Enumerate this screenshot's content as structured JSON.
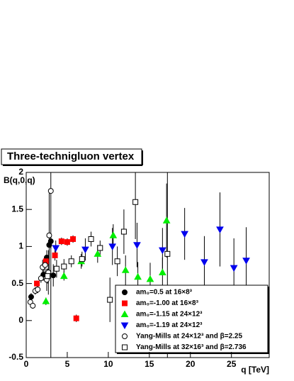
{
  "chart_data": {
    "type": "errorbar-scatter",
    "title": "Three-technigluon vertex",
    "y_label": "B(q,0,q)",
    "x_label": "q [TeV]",
    "xlim": [
      0,
      29.6
    ],
    "ylim": [
      -0.5,
      2
    ],
    "xticks": [
      0,
      5,
      10,
      15,
      20,
      25
    ],
    "yticks": [
      -0.5,
      0,
      0.5,
      1,
      1.5,
      2
    ],
    "series": [
      {
        "name": "am₀=0.5 at 16×8³",
        "color": "#000000",
        "marker": "circle-filled",
        "x": [
          0.6,
          2.1,
          2.5,
          2.8,
          3.0,
          3.3
        ],
        "values": [
          0.32,
          0.62,
          0.85,
          1.02,
          1.07,
          0.61
        ],
        "errors": [
          0.05,
          0.08,
          0.1,
          0.12,
          0.1,
          0.15
        ]
      },
      {
        "name": "am₀=-1.00 at 16×8³",
        "color": "#ff0000",
        "marker": "square-filled",
        "x": [
          1.3,
          2.4,
          3.5,
          4.3,
          5.0,
          5.7,
          6.1
        ],
        "values": [
          0.5,
          0.8,
          0.88,
          1.07,
          1.06,
          1.1,
          0.03
        ],
        "errors": [
          0.04,
          0.06,
          0.07,
          0.05,
          0.05,
          0.05,
          0.05
        ]
      },
      {
        "name": "am₀=-1.15 at 24×12³",
        "color": "#00ee00",
        "marker": "triangle-up",
        "x": [
          2.4,
          4.6,
          6.7,
          8.7,
          10.6,
          12.1,
          13.6,
          15.1,
          16.6,
          17.1
        ],
        "values": [
          0.26,
          0.6,
          0.8,
          0.9,
          1.15,
          0.68,
          0.59,
          0.56,
          0.65,
          1.35
        ],
        "errors": [
          0.05,
          0.06,
          0.1,
          0.12,
          0.15,
          0.2,
          0.2,
          0.22,
          0.2,
          0.5
        ]
      },
      {
        "name": "am₀=-1.19 at 24×12³",
        "color": "#0000ee",
        "marker": "triangle-down",
        "x": [
          3.6,
          7.2,
          10.5,
          13.5,
          16.6,
          19.3,
          21.7,
          23.6,
          25.3,
          26.8
        ],
        "values": [
          0.98,
          0.96,
          1.0,
          1.02,
          0.95,
          1.17,
          0.79,
          1.23,
          0.71,
          0.81
        ],
        "errors": [
          0.1,
          0.15,
          0.25,
          0.3,
          0.3,
          0.35,
          0.35,
          0.5,
          0.4,
          0.45
        ]
      },
      {
        "name": "Yang-Mills at 24×12³ and β=2.25",
        "color": "#000000",
        "marker": "circle-open",
        "x": [
          0.5,
          0.8,
          1.1,
          1.4,
          1.8,
          2.0,
          2.3,
          2.5,
          2.7,
          2.8,
          3.0
        ],
        "values": [
          0.25,
          0.2,
          0.4,
          0.42,
          0.57,
          0.72,
          0.75,
          0.55,
          0.65,
          1.15,
          1.75
        ],
        "errors": [
          0.03,
          0.04,
          0.05,
          0.05,
          0.06,
          0.1,
          0.1,
          0.15,
          0.3,
          0.6,
          2.5
        ]
      },
      {
        "name": "Yang-Mills at 32×16³ and β=2.736",
        "color": "#000000",
        "marker": "square-open",
        "x": [
          2.6,
          3.7,
          4.6,
          5.5,
          6.8,
          7.9,
          9.0,
          10.2,
          11.1,
          11.9,
          13.3,
          17.2
        ],
        "values": [
          0.6,
          0.7,
          0.73,
          0.8,
          0.83,
          1.1,
          0.98,
          0.28,
          0.8,
          1.2,
          1.6,
          0.9
        ],
        "errors": [
          0.1,
          0.12,
          0.1,
          0.08,
          0.1,
          0.1,
          0.1,
          0.3,
          0.2,
          0.3,
          0.5,
          1.5
        ]
      }
    ]
  }
}
